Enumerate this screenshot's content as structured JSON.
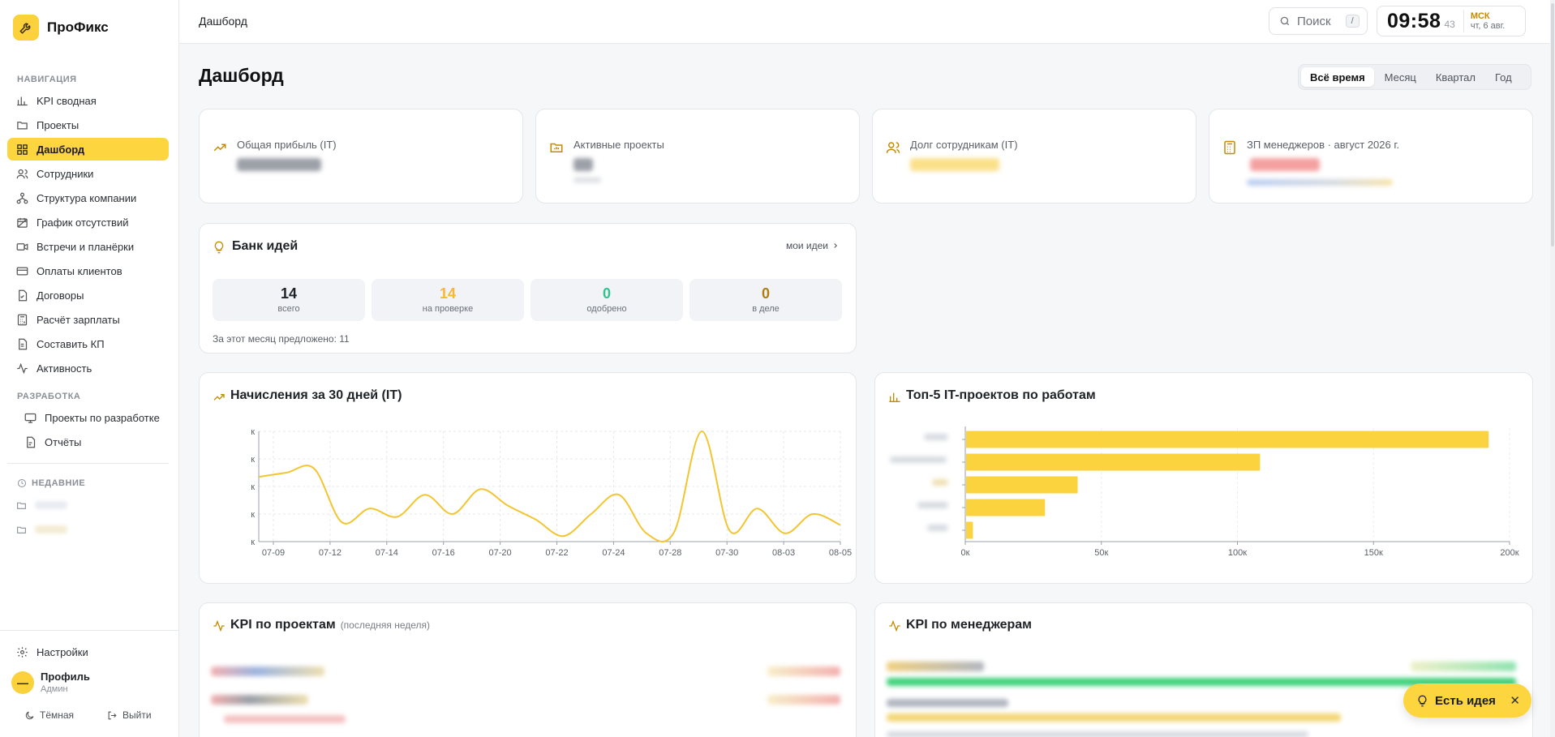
{
  "app": {
    "name": "ПроФикс",
    "accent": "#fcd53f"
  },
  "sidebar": {
    "nav_title": "НАВИГАЦИЯ",
    "items": [
      {
        "label": "KPI сводная",
        "icon": "bar-chart-icon"
      },
      {
        "label": "Проекты",
        "icon": "folder-icon"
      },
      {
        "label": "Дашборд",
        "icon": "grid-icon",
        "active": true
      },
      {
        "label": "Сотрудники",
        "icon": "users-icon"
      },
      {
        "label": "Структура компании",
        "icon": "org-structure-icon"
      },
      {
        "label": "График отсутствий",
        "icon": "calendar-icon"
      },
      {
        "label": "Встречи и планёрки",
        "icon": "video-icon"
      },
      {
        "label": "Оплаты клиентов",
        "icon": "card-icon"
      },
      {
        "label": "Договоры",
        "icon": "document-icon"
      },
      {
        "label": "Расчёт зарплаты",
        "icon": "calculator-icon"
      },
      {
        "label": "Составить КП",
        "icon": "file-icon"
      },
      {
        "label": "Активность",
        "icon": "activity-icon"
      }
    ],
    "dev_title": "РАЗРАБОТКА",
    "dev_items": [
      {
        "label": "Проекты по разработке",
        "icon": "monitor-icon"
      },
      {
        "label": "Отчёты",
        "icon": "report-icon"
      }
    ],
    "recent_title": "НЕДАВНИЕ",
    "settings_label": "Настройки",
    "profile": {
      "initial": "—",
      "name": "Профиль",
      "role": "Админ"
    },
    "theme_label": "Тёмная",
    "logout_label": "Выйти"
  },
  "header": {
    "breadcrumb": "Дашборд",
    "search_label": "Поиск",
    "search_shortcut": "/",
    "clock": {
      "time": "09:58",
      "seconds": "43",
      "tz": "МСК",
      "date": "чт, 6 авг."
    }
  },
  "main": {
    "title": "Дашборд",
    "periods": [
      "Всё время",
      "Месяц",
      "Квартал",
      "Год"
    ],
    "stats": [
      {
        "label": "Общая прибыль (IT)"
      },
      {
        "label": "Активные проекты"
      },
      {
        "label": "Долг сотрудникам (IT)"
      },
      {
        "label": "ЗП менеджеров · август 2026 г."
      }
    ],
    "ideas": {
      "title": "Банк идей",
      "link": "мои идеи",
      "boxes": [
        {
          "value": "14",
          "label": "всего",
          "color": "#1f2328"
        },
        {
          "value": "14",
          "label": "на проверке",
          "color": "#f5b82e"
        },
        {
          "value": "0",
          "label": "одобрено",
          "color": "#2fc48d"
        },
        {
          "value": "0",
          "label": "в деле",
          "color": "#b07d10"
        }
      ],
      "month_note": "За этот месяц предложено: 11"
    },
    "accruals": {
      "title": "Начисления за 30 дней (IT)"
    },
    "top5": {
      "title": "Топ-5 IT-проектов по работам"
    },
    "kpi_projects": {
      "title": "KPI по проектам",
      "subtitle": "(последняя неделя)"
    },
    "kpi_managers": {
      "title": "KPI по менеджерам"
    }
  },
  "fab": {
    "label": "Есть идея"
  },
  "chart_data": [
    {
      "type": "line",
      "title": "Начисления за 30 дней (IT)",
      "x_ticks": [
        "07-09",
        "07-12",
        "07-14",
        "07-16",
        "07-20",
        "07-22",
        "07-24",
        "07-28",
        "07-30",
        "08-03",
        "08-05"
      ],
      "y_ticks": [
        "к",
        "к",
        "к",
        "к",
        "к"
      ],
      "values": [
        2.35,
        2.5,
        2.65,
        0.7,
        1.2,
        0.9,
        1.7,
        1.0,
        1.9,
        1.3,
        0.8,
        0.2,
        1.0,
        1.7,
        0.3,
        0.35,
        4.0,
        0.4,
        1.2,
        0.3,
        1.0,
        0.6
      ],
      "ylim": [
        0,
        4
      ]
    },
    {
      "type": "bar",
      "orientation": "horizontal",
      "title": "Топ-5 IT-проектов по работам",
      "values": [
        192000,
        108000,
        41000,
        29000,
        2500
      ],
      "x_ticks": [
        "0к",
        "50к",
        "100к",
        "150к",
        "200к"
      ],
      "xlim": [
        0,
        200000
      ]
    }
  ]
}
